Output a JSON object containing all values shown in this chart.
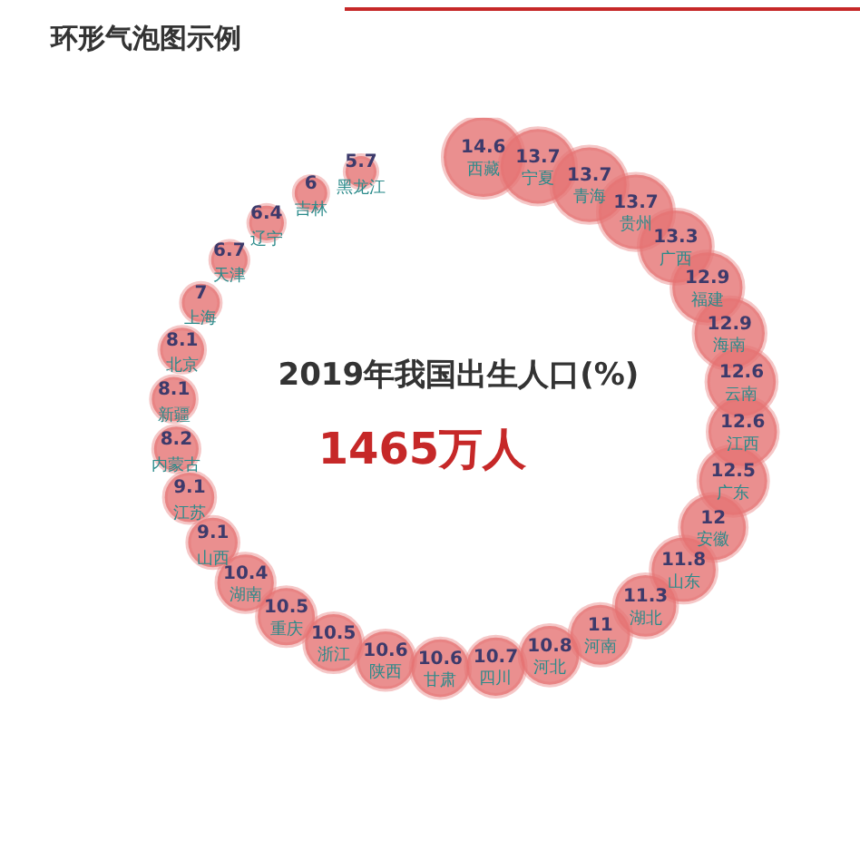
{
  "chart_data": {
    "type": "other",
    "title": "环形气泡图示例",
    "subtitle": "2019年我国出生人口(%)",
    "annotations": [
      "1465万人"
    ],
    "categories": [
      "西藏",
      "宁夏",
      "青海",
      "贵州",
      "广西",
      "福建",
      "海南",
      "云南",
      "江西",
      "广东",
      "安徽",
      "山东",
      "湖北",
      "河南",
      "河北",
      "四川",
      "甘肃",
      "陕西",
      "浙江",
      "重庆",
      "湖南",
      "山西",
      "江苏",
      "内蒙古",
      "新疆",
      "北京",
      "上海",
      "天津",
      "辽宁",
      "吉林",
      "黑龙江"
    ],
    "values": [
      14.6,
      13.7,
      13.7,
      13.7,
      13.3,
      12.9,
      12.9,
      12.6,
      12.6,
      12.5,
      12,
      11.8,
      11.3,
      11,
      10.8,
      10.7,
      10.6,
      10.6,
      10.5,
      10.5,
      10.4,
      9.1,
      9.1,
      8.2,
      8.1,
      8.1,
      7,
      6.7,
      6.4,
      6,
      5.7
    ],
    "color": "#e57373",
    "data_labels": true
  }
}
